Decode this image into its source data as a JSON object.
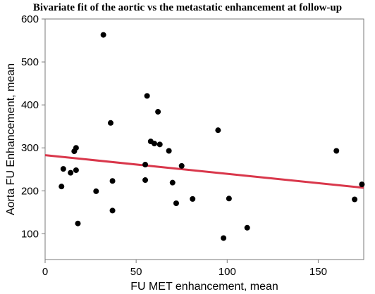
{
  "chart_data": {
    "type": "scatter",
    "title": "Bivariate fit of the aortic vs the metastatic enhancement at follow-up",
    "xlabel": "FU MET enhancement, mean",
    "ylabel": "Aorta FU Enhancement, mean",
    "xlim": [
      0,
      175
    ],
    "ylim": [
      40,
      600
    ],
    "xticks": [
      0,
      50,
      100,
      150
    ],
    "yticks": [
      100,
      200,
      300,
      400,
      500,
      600
    ],
    "grid": false,
    "points": [
      {
        "x": 32,
        "y": 563
      },
      {
        "x": 56,
        "y": 421
      },
      {
        "x": 62,
        "y": 384
      },
      {
        "x": 36,
        "y": 358
      },
      {
        "x": 95,
        "y": 341
      },
      {
        "x": 58,
        "y": 315
      },
      {
        "x": 60,
        "y": 310
      },
      {
        "x": 63,
        "y": 308
      },
      {
        "x": 17,
        "y": 300
      },
      {
        "x": 16,
        "y": 292
      },
      {
        "x": 68,
        "y": 293
      },
      {
        "x": 160,
        "y": 293
      },
      {
        "x": 55,
        "y": 261
      },
      {
        "x": 75,
        "y": 258
      },
      {
        "x": 10,
        "y": 251
      },
      {
        "x": 17,
        "y": 248
      },
      {
        "x": 14,
        "y": 242
      },
      {
        "x": 55,
        "y": 225
      },
      {
        "x": 37,
        "y": 223
      },
      {
        "x": 70,
        "y": 219
      },
      {
        "x": 174,
        "y": 215
      },
      {
        "x": 9,
        "y": 210
      },
      {
        "x": 28,
        "y": 199
      },
      {
        "x": 81,
        "y": 181
      },
      {
        "x": 101,
        "y": 182
      },
      {
        "x": 170,
        "y": 180
      },
      {
        "x": 72,
        "y": 171
      },
      {
        "x": 37,
        "y": 154
      },
      {
        "x": 18,
        "y": 124
      },
      {
        "x": 111,
        "y": 114
      },
      {
        "x": 98,
        "y": 90
      }
    ],
    "fit_line": {
      "x": [
        0,
        175
      ],
      "y": [
        283,
        207
      ],
      "color": "#d9374b"
    },
    "point_color": "#000000"
  }
}
